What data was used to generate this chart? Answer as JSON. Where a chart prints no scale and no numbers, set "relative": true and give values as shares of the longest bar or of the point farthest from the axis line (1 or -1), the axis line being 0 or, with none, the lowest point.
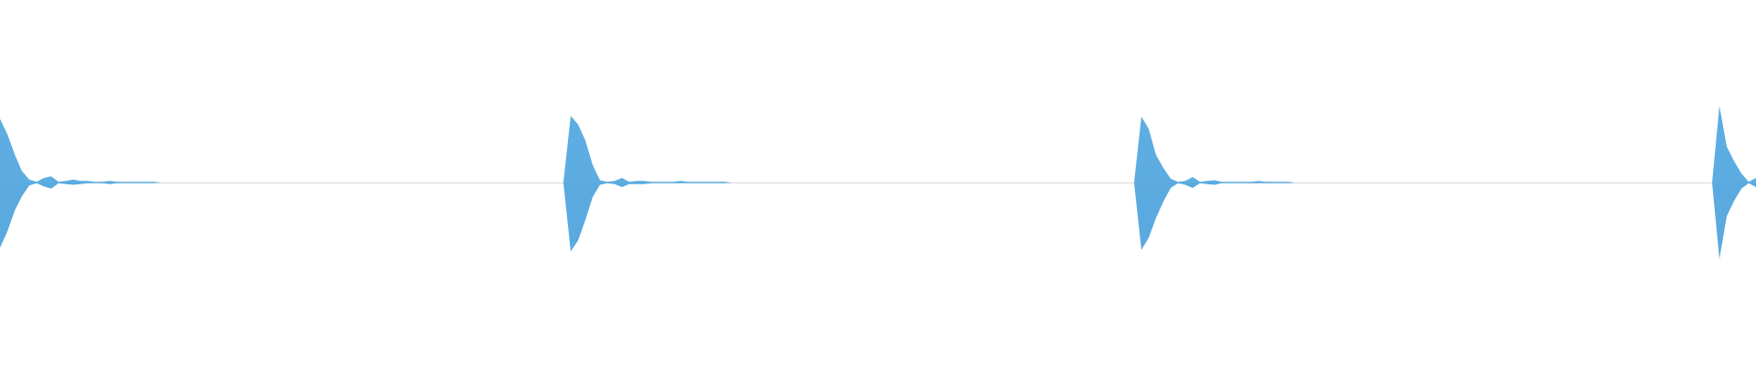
{
  "chart_data": {
    "type": "area",
    "relative": true,
    "categories": [
      null,
      null,
      null,
      null,
      null,
      null,
      null,
      null,
      null,
      null,
      null,
      null,
      null,
      null,
      null,
      null,
      null,
      null,
      null,
      null,
      null,
      null,
      null,
      null,
      null,
      null,
      null,
      null,
      null,
      null,
      null,
      null,
      null,
      null,
      null,
      null,
      null,
      null,
      null,
      null,
      null,
      null,
      null,
      null,
      null,
      null,
      null,
      null,
      null,
      null,
      null,
      null,
      null,
      null,
      null,
      null,
      null,
      null,
      null,
      null,
      null,
      null,
      null,
      null,
      null,
      null,
      null,
      null,
      null,
      null,
      null,
      null,
      null,
      null,
      null,
      null,
      null,
      null,
      null,
      null,
      null,
      null,
      null,
      null,
      null,
      null,
      null,
      null,
      null,
      null,
      null,
      null,
      null,
      null,
      null,
      null,
      null,
      null,
      null,
      null,
      null,
      null,
      null,
      null,
      null,
      null,
      null,
      null,
      null,
      null,
      null,
      null,
      null,
      null,
      null,
      null,
      null,
      null,
      null,
      null,
      null,
      null,
      null,
      null,
      null,
      null,
      null,
      null,
      null,
      null,
      null,
      null,
      null,
      null,
      null,
      null,
      null,
      null,
      null,
      null,
      null,
      null,
      null,
      null,
      null,
      null,
      null,
      null,
      null,
      null,
      null,
      null,
      null,
      null,
      null,
      null,
      null,
      null,
      null,
      null,
      null,
      null,
      null,
      null,
      null,
      null,
      null,
      null,
      null,
      null,
      null,
      null,
      null,
      null,
      null,
      null,
      null,
      null,
      null,
      null,
      null,
      null,
      null,
      null,
      null,
      null,
      null,
      null,
      null,
      null,
      null,
      null,
      null,
      null,
      null,
      null,
      null,
      null,
      null,
      null,
      null,
      null,
      null,
      null,
      null,
      null,
      null,
      null,
      null,
      null,
      null,
      null,
      null,
      null,
      null,
      null,
      null,
      null,
      null,
      null,
      null,
      null,
      null,
      null,
      null,
      null,
      null,
      null,
      null,
      null,
      null,
      null,
      null,
      null,
      null,
      null,
      null,
      null,
      null,
      null,
      null
    ],
    "series": [
      {
        "color": "#5dade2",
        "values": [
          0.83,
          0.63,
          0.37,
          0.15,
          0.04,
          0.01,
          0.06,
          0.08,
          0.01,
          0.02,
          0.04,
          0.02,
          0.02,
          0.01,
          0.01,
          0.02,
          0.01,
          0.01,
          0.01,
          0.01,
          0.01,
          0.01,
          0,
          0,
          0,
          0,
          0,
          0,
          0,
          0,
          0,
          0,
          0,
          0,
          0,
          0,
          0,
          0,
          0,
          0,
          0,
          0,
          0,
          0,
          0,
          0,
          0,
          0,
          0,
          0,
          0,
          0,
          0,
          0,
          0,
          0,
          0,
          0,
          0,
          0,
          0,
          0,
          0,
          0,
          0,
          0,
          0,
          0,
          0,
          0,
          0,
          0,
          0,
          0,
          0,
          0,
          0,
          0,
          0.87,
          0.76,
          0.55,
          0.23,
          0.03,
          0.01,
          0.02,
          0.06,
          0.01,
          0.02,
          0.02,
          0.01,
          0.01,
          0.01,
          0.01,
          0.02,
          0.01,
          0.01,
          0.01,
          0.01,
          0.01,
          0.01,
          0,
          0,
          0,
          0,
          0,
          0,
          0,
          0,
          0,
          0,
          0,
          0,
          0,
          0,
          0,
          0,
          0,
          0,
          0,
          0,
          0,
          0,
          0,
          0,
          0,
          0,
          0,
          0,
          0,
          0,
          0,
          0,
          0,
          0,
          0,
          0,
          0,
          0,
          0,
          0,
          0,
          0,
          0,
          0,
          0,
          0,
          0,
          0,
          0,
          0,
          0,
          0,
          0,
          0,
          0,
          0,
          0.86,
          0.7,
          0.36,
          0.19,
          0.05,
          0.01,
          0.02,
          0.07,
          0.01,
          0.02,
          0.03,
          0.01,
          0.01,
          0.01,
          0.01,
          0.01,
          0.02,
          0.01,
          0.01,
          0.01,
          0.01,
          0,
          0,
          0,
          0,
          0,
          0,
          0,
          0,
          0,
          0,
          0,
          0,
          0,
          0,
          0,
          0,
          0,
          0,
          0,
          0,
          0,
          0,
          0,
          0,
          0,
          0,
          0,
          0,
          0,
          0,
          0,
          0,
          0,
          0,
          0,
          0,
          0,
          0,
          0,
          0,
          0,
          0,
          0,
          0,
          0,
          0,
          0,
          0,
          0,
          0,
          0,
          0,
          0,
          0,
          0,
          0,
          0,
          0,
          1,
          0.47,
          0.28,
          0.12,
          0.01,
          0.06
        ]
      },
      {
        "color": "#5aaae0",
        "values": [
          -0.85,
          -0.64,
          -0.37,
          -0.18,
          -0.04,
          -0.01,
          -0.05,
          -0.08,
          -0.01,
          -0.02,
          -0.03,
          -0.02,
          -0.01,
          -0.01,
          -0.01,
          -0.02,
          -0.01,
          -0.01,
          -0.01,
          -0.01,
          -0.01,
          -0.01,
          0,
          0,
          0,
          0,
          0,
          0,
          0,
          0,
          0,
          0,
          0,
          0,
          0,
          0,
          0,
          0,
          0,
          0,
          0,
          0,
          0,
          0,
          0,
          0,
          0,
          0,
          0,
          0,
          0,
          0,
          0,
          0,
          0,
          0,
          0,
          0,
          0,
          0,
          0,
          0,
          0,
          0,
          0,
          0,
          0,
          0,
          0,
          0,
          0,
          0,
          0,
          0,
          0,
          0,
          0,
          0,
          -0.9,
          -0.76,
          -0.49,
          -0.19,
          -0.03,
          -0.01,
          -0.02,
          -0.06,
          -0.02,
          -0.02,
          -0.02,
          -0.01,
          -0.01,
          -0.01,
          -0.01,
          -0.01,
          -0.01,
          -0.01,
          -0.01,
          -0.01,
          -0.01,
          -0.01,
          0,
          0,
          0,
          0,
          0,
          0,
          0,
          0,
          0,
          0,
          0,
          0,
          0,
          0,
          0,
          0,
          0,
          0,
          0,
          0,
          0,
          0,
          0,
          0,
          0,
          0,
          0,
          0,
          0,
          0,
          0,
          0,
          0,
          0,
          0,
          0,
          0,
          0,
          0,
          0,
          0,
          0,
          0,
          0,
          0,
          0,
          0,
          0,
          0,
          0,
          0,
          0,
          0,
          0,
          0,
          0,
          -0.88,
          -0.72,
          -0.46,
          -0.25,
          -0.07,
          -0.01,
          -0.03,
          -0.07,
          -0.01,
          -0.02,
          -0.03,
          -0.01,
          -0.01,
          -0.01,
          -0.01,
          -0.01,
          -0.01,
          -0.01,
          -0.01,
          -0.01,
          -0.01,
          0,
          0,
          0,
          0,
          0,
          0,
          0,
          0,
          0,
          0,
          0,
          0,
          0,
          0,
          0,
          0,
          0,
          0,
          0,
          0,
          0,
          0,
          0,
          0,
          0,
          0,
          0,
          0,
          0,
          0,
          0,
          0,
          0,
          0,
          0,
          0,
          0,
          0,
          0,
          0,
          0,
          0,
          0,
          0,
          0,
          0,
          0,
          0,
          0,
          0,
          0,
          0,
          0,
          0,
          0,
          0,
          0,
          0,
          -1,
          -0.44,
          -0.24,
          -0.08,
          -0.01,
          -0.06
        ]
      }
    ]
  }
}
